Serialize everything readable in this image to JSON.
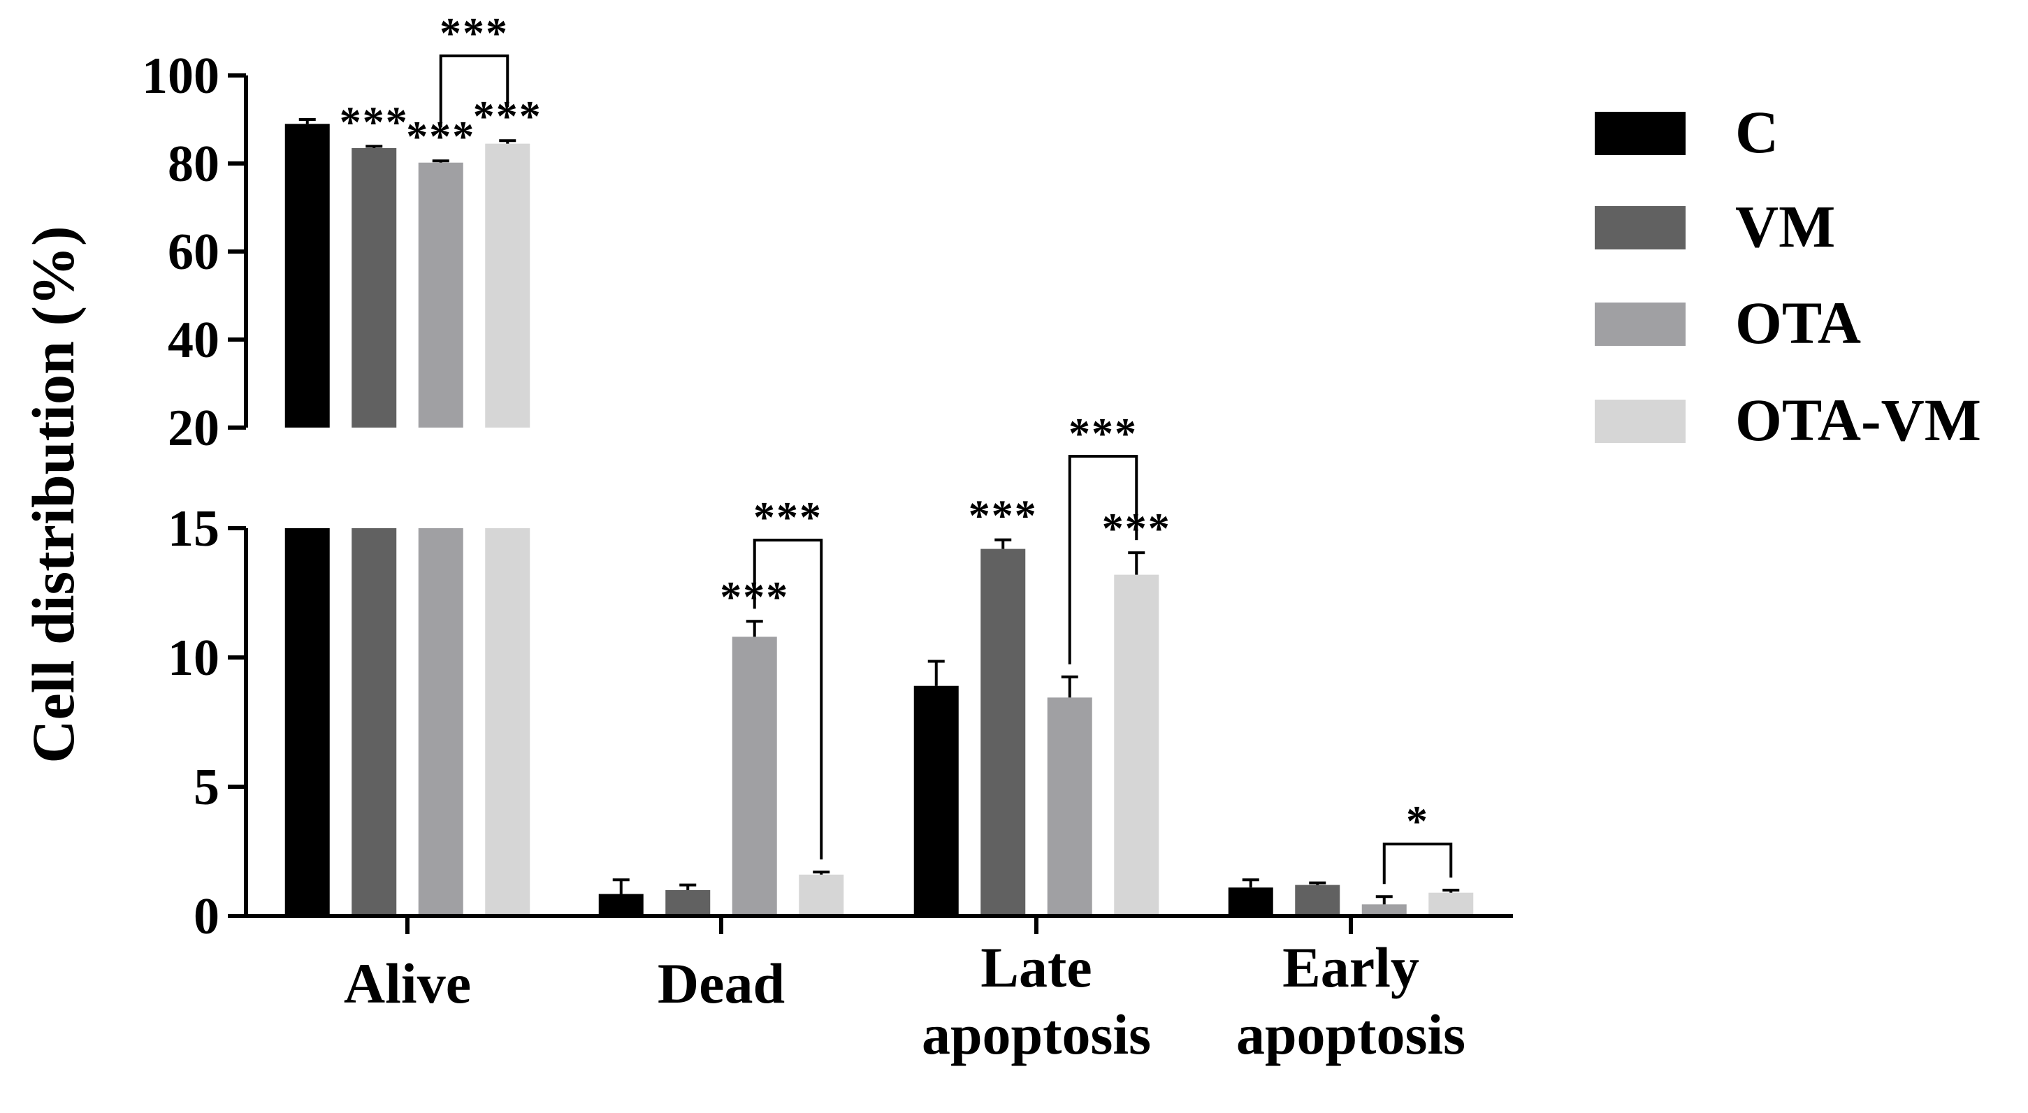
{
  "chart_data": {
    "type": "bar",
    "ylabel": "Cell distribution (%)",
    "xlabel": "",
    "title": "",
    "axis_break": true,
    "ylim_lower": [
      0,
      15
    ],
    "ylim_upper": [
      20,
      100
    ],
    "yticks_lower": [
      "0",
      "5",
      "10",
      "15"
    ],
    "yticks_upper": [
      "20",
      "40",
      "60",
      "80",
      "100"
    ],
    "categories": [
      "Alive",
      "Dead",
      "Late apoptosis",
      "Early apoptosis"
    ],
    "category_lines": [
      [
        "Alive"
      ],
      [
        "Dead"
      ],
      [
        "Late",
        "apoptosis"
      ],
      [
        "Early",
        "apoptosis"
      ]
    ],
    "legend_position": "right",
    "series": [
      {
        "name": "C",
        "color": "#000000",
        "values": [
          89.0,
          0.85,
          8.9,
          1.1
        ],
        "errors": [
          1.0,
          0.55,
          0.95,
          0.3
        ]
      },
      {
        "name": "VM",
        "color": "#616161",
        "values": [
          83.5,
          1.0,
          14.2,
          1.2
        ],
        "errors": [
          0.4,
          0.2,
          0.35,
          0.08
        ]
      },
      {
        "name": "OTA",
        "color": "#a0a0a3",
        "values": [
          80.2,
          10.8,
          8.45,
          0.45
        ],
        "errors": [
          0.4,
          0.6,
          0.8,
          0.3
        ]
      },
      {
        "name": "OTA-VM",
        "color": "#d6d6d6",
        "values": [
          84.5,
          1.6,
          13.2,
          0.9
        ],
        "errors": [
          0.7,
          0.1,
          0.85,
          0.1
        ]
      }
    ],
    "significance": [
      {
        "category": 0,
        "series": 1,
        "label": "***"
      },
      {
        "category": 0,
        "series": 2,
        "label": "***"
      },
      {
        "category": 0,
        "series": 3,
        "label": "***"
      },
      {
        "category": 1,
        "series": 2,
        "label": "***"
      },
      {
        "category": 2,
        "series": 1,
        "label": "***"
      },
      {
        "category": 2,
        "series": 3,
        "label": "***"
      }
    ],
    "brackets": [
      {
        "category": 0,
        "from": 2,
        "to": 3,
        "label": "***"
      },
      {
        "category": 1,
        "from": 2,
        "to": 3,
        "label": "***"
      },
      {
        "category": 2,
        "from": 2,
        "to": 3,
        "label": "***"
      },
      {
        "category": 3,
        "from": 2,
        "to": 3,
        "label": "*"
      }
    ]
  }
}
